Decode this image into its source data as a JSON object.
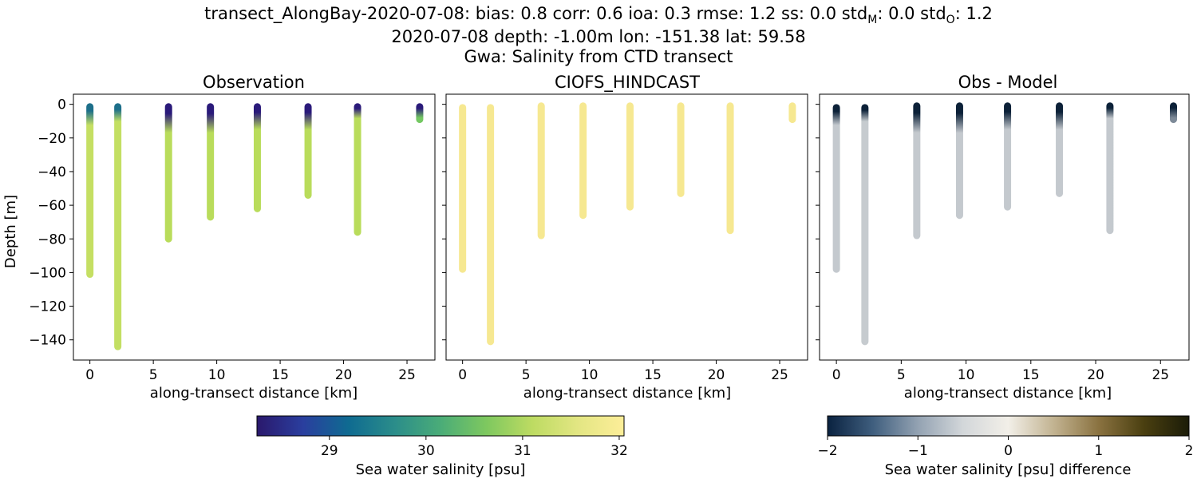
{
  "figure": {
    "title_lines": [
      "transect_AlongBay-2020-07-08: bias: 0.8  corr: 0.6  ioa: 0.3  rmse: 1.2  ss: 0.0  std",
      "2020-07-08 depth: -1.00m lon: -151.38 lat: 59.58",
      "Gwa: Salinity from CTD transect"
    ],
    "title_suffix": {
      "std_m_sub": "M",
      "std_m_val": ": 0.0  std",
      "std_o_sub": "O",
      "std_o_val": ": 1.2"
    },
    "ylabel": "Depth [m]",
    "xlabel": "along-transect distance [km]"
  },
  "chart_data": [
    {
      "type": "scatter",
      "title": "Observation",
      "xlabel": "along-transect distance [km]",
      "ylabel": "Depth [m]",
      "xlim": [
        -1.3,
        27.2
      ],
      "ylim": [
        -152,
        6
      ],
      "xticks": [
        0,
        5,
        10,
        15,
        20,
        25
      ],
      "yticks": [
        0,
        -20,
        -40,
        -60,
        -80,
        -100,
        -120,
        -140
      ],
      "colormap": "haline",
      "profiles": [
        {
          "x": 0.0,
          "top": -1.5,
          "bottom": -101,
          "surface_color": "#1d6f8a",
          "deep_color": "#c5df63",
          "transition_depth": -14
        },
        {
          "x": 2.2,
          "top": -1.5,
          "bottom": -144,
          "surface_color": "#1d6f8a",
          "deep_color": "#c3df63",
          "transition_depth": -12
        },
        {
          "x": 6.2,
          "top": -1.5,
          "bottom": -80,
          "surface_color": "#2a1a7a",
          "deep_color": "#b9dc5b",
          "transition_depth": -18
        },
        {
          "x": 9.5,
          "top": -1.5,
          "bottom": -67,
          "surface_color": "#2a1a7a",
          "deep_color": "#b9dc5b",
          "transition_depth": -18
        },
        {
          "x": 13.2,
          "top": -1.5,
          "bottom": -62,
          "surface_color": "#2a1a7a",
          "deep_color": "#b9dc5b",
          "transition_depth": -16
        },
        {
          "x": 17.2,
          "top": -1.5,
          "bottom": -54,
          "surface_color": "#2a1a7a",
          "deep_color": "#b9dc5b",
          "transition_depth": -16
        },
        {
          "x": 21.1,
          "top": -1.5,
          "bottom": -76,
          "surface_color": "#2a1a7a",
          "deep_color": "#b9dc5b",
          "transition_depth": -10
        },
        {
          "x": 26.0,
          "top": -1.5,
          "bottom": -9,
          "surface_color": "#2a1a7a",
          "deep_color": "#74c862",
          "transition_depth": -7
        }
      ]
    },
    {
      "type": "scatter",
      "title": "CIOFS_HINDCAST",
      "xlabel": "along-transect distance [km]",
      "xlim": [
        -1.3,
        27.2
      ],
      "ylim": [
        -152,
        6
      ],
      "xticks": [
        0,
        5,
        10,
        15,
        20,
        25
      ],
      "colormap": "haline",
      "profiles": [
        {
          "x": 0.0,
          "top": -2,
          "bottom": -98,
          "surface_color": "#f6e891",
          "deep_color": "#f6e891"
        },
        {
          "x": 2.2,
          "top": -2,
          "bottom": -141,
          "surface_color": "#f6e891",
          "deep_color": "#f6e891"
        },
        {
          "x": 6.2,
          "top": -1,
          "bottom": -78,
          "surface_color": "#f6e891",
          "deep_color": "#f6e891"
        },
        {
          "x": 9.5,
          "top": -1,
          "bottom": -66,
          "surface_color": "#f6e891",
          "deep_color": "#f6e891"
        },
        {
          "x": 13.2,
          "top": -1,
          "bottom": -61,
          "surface_color": "#f6e891",
          "deep_color": "#f6e891"
        },
        {
          "x": 17.2,
          "top": -1,
          "bottom": -53,
          "surface_color": "#f6e891",
          "deep_color": "#f6e891"
        },
        {
          "x": 21.1,
          "top": -1,
          "bottom": -75,
          "surface_color": "#f6e891",
          "deep_color": "#f6e891"
        },
        {
          "x": 26.0,
          "top": -1,
          "bottom": -9,
          "surface_color": "#f6e891",
          "deep_color": "#f6e891"
        }
      ]
    },
    {
      "type": "scatter",
      "title": "Obs - Model",
      "xlabel": "along-transect distance [km]",
      "xlim": [
        -1.3,
        27.2
      ],
      "ylim": [
        -152,
        6
      ],
      "xticks": [
        0,
        5,
        10,
        15,
        20,
        25
      ],
      "colormap": "diff",
      "profiles": [
        {
          "x": 0.0,
          "top": -2,
          "bottom": -98,
          "surface_color": "#0c2138",
          "deep_color": "#c4c9ce",
          "transition_depth": -14
        },
        {
          "x": 2.2,
          "top": -2,
          "bottom": -141,
          "surface_color": "#0c2138",
          "deep_color": "#c6cbcf",
          "transition_depth": -12
        },
        {
          "x": 6.2,
          "top": -1,
          "bottom": -78,
          "surface_color": "#0c2138",
          "deep_color": "#c4c9ce",
          "transition_depth": -18
        },
        {
          "x": 9.5,
          "top": -1,
          "bottom": -66,
          "surface_color": "#0c2138",
          "deep_color": "#c4c9ce",
          "transition_depth": -18
        },
        {
          "x": 13.2,
          "top": -1,
          "bottom": -61,
          "surface_color": "#0c2138",
          "deep_color": "#c4c9ce",
          "transition_depth": -16
        },
        {
          "x": 17.2,
          "top": -1,
          "bottom": -53,
          "surface_color": "#0c2138",
          "deep_color": "#c4c9ce",
          "transition_depth": -16
        },
        {
          "x": 21.1,
          "top": -1,
          "bottom": -75,
          "surface_color": "#0c2138",
          "deep_color": "#c4c9ce",
          "transition_depth": -10
        },
        {
          "x": 26.0,
          "top": -1,
          "bottom": -9,
          "surface_color": "#0c2138",
          "deep_color": "#7d8a98",
          "transition_depth": -7
        }
      ]
    }
  ],
  "colorbars": [
    {
      "label": "Sea water salinity [psu]",
      "range": [
        28.25,
        32.05
      ],
      "ticks": [
        "29",
        "30",
        "31",
        "32"
      ],
      "tick_values": [
        29,
        30,
        31,
        32
      ],
      "colors": [
        "#2a186c",
        "#2a3e9e",
        "#0f6b91",
        "#2b8d8a",
        "#4aac78",
        "#7ec85f",
        "#bddb62",
        "#e3e683",
        "#fdee99"
      ]
    },
    {
      "label": "Sea water salinity [psu] difference",
      "range": [
        -2,
        2
      ],
      "ticks": [
        "−2",
        "−1",
        "0",
        "1",
        "2"
      ],
      "tick_values": [
        -2,
        -1,
        0,
        1,
        2
      ],
      "colors": [
        "#0a2240",
        "#3f5e7e",
        "#93a2b2",
        "#d3d7da",
        "#f2efe8",
        "#c2b391",
        "#8a7240",
        "#4a3f10",
        "#1b1c08"
      ]
    }
  ]
}
